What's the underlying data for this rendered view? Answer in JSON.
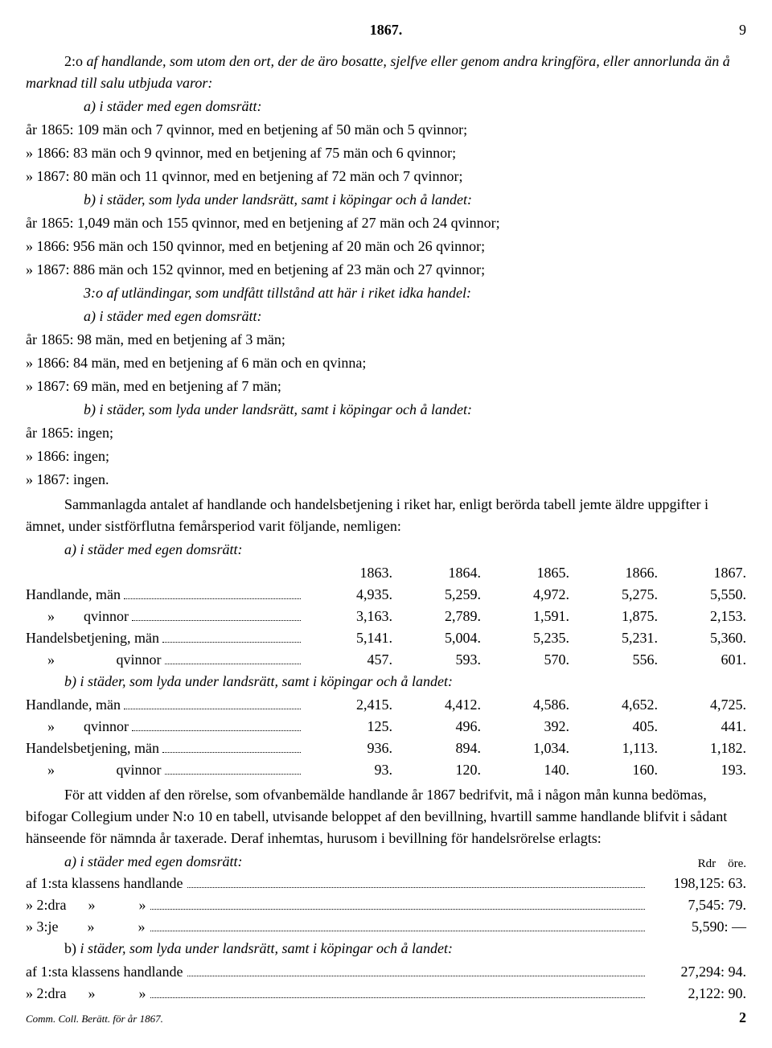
{
  "header": {
    "year": "1867.",
    "page": "9"
  },
  "lead": {
    "num": "2:o",
    "rest": "af handlande, som utom den ort, der de äro bosatte, sjelfve eller genom andra kringföra, eller annorlunda än å marknad till salu utbjuda varor:",
    "a": "a) i städer med egen domsrätt:"
  },
  "lines2a": [
    "år 1865: 109 män och 7 qvinnor, med en betjening af 50 män och 5 qvinnor;",
    "» 1866: 83 män och 9 qvinnor, med en betjening af 75 män och 6 qvinnor;",
    "» 1867: 80 män och 11 qvinnor, med en betjening af 72 män och 7 qvinnor;"
  ],
  "head2b": "b) i städer, som lyda under landsrätt, samt i köpingar och å landet:",
  "lines2b": [
    "år 1865: 1,049 män och 155 qvinnor, med en betjening af 27 män och 24 qvinnor;",
    "» 1866: 956 män och 150 qvinnor, med en betjening af 20 män och 26 qvinnor;",
    "» 1867: 886 män och 152 qvinnor, med en betjening af 23 män och 27 qvinnor;"
  ],
  "lead3": "3:o af utländingar, som undfått tillstånd att här i riket idka handel:",
  "head3a": "a) i städer med egen domsrätt:",
  "lines3a": [
    "år 1865: 98 män, med en betjening af 3 män;",
    "» 1866: 84 män, med en betjening af 6 män och en qvinna;",
    "» 1867: 69 män, med en betjening af 7 män;"
  ],
  "head3b": "b) i städer, som lyda under landsrätt, samt i köpingar och å landet:",
  "lines3b": [
    "år 1865: ingen;",
    "» 1866: ingen;",
    "» 1867: ingen."
  ],
  "sum1": "Sammanlagda antalet af handlande och handelsbetjening i riket har, enligt berörda tabell jemte äldre uppgifter i ämnet, under sistförflutna femårsperiod varit följande, nemligen:",
  "tblA_title": "a) i städer med egen domsrätt:",
  "tbl_years": [
    "1863.",
    "1864.",
    "1865.",
    "1866.",
    "1867."
  ],
  "tblA": [
    {
      "label": "Handlande, män",
      "vals": [
        "4,935.",
        "5,259.",
        "4,972.",
        "5,275.",
        "5,550."
      ]
    },
    {
      "label": "      »        qvinnor",
      "vals": [
        "3,163.",
        "2,789.",
        "1,591.",
        "1,875.",
        "2,153."
      ]
    },
    {
      "label": "Handelsbetjening, män",
      "vals": [
        "5,141.",
        "5,004.",
        "5,235.",
        "5,231.",
        "5,360."
      ]
    },
    {
      "label": "      »                 qvinnor",
      "vals": [
        "457.",
        "593.",
        "570.",
        "556.",
        "601."
      ]
    }
  ],
  "tblB_title": "b) i städer, som lyda under landsrätt, samt i köpingar och å landet:",
  "tblB": [
    {
      "label": "Handlande, män",
      "vals": [
        "2,415.",
        "4,412.",
        "4,586.",
        "4,652.",
        "4,725."
      ]
    },
    {
      "label": "      »        qvinnor",
      "vals": [
        "125.",
        "496.",
        "392.",
        "405.",
        "441."
      ]
    },
    {
      "label": "Handelsbetjening, män",
      "vals": [
        "936.",
        "894.",
        "1,034.",
        "1,113.",
        "1,182."
      ]
    },
    {
      "label": "      »                 qvinnor",
      "vals": [
        "93.",
        "120.",
        "140.",
        "160.",
        "193."
      ]
    }
  ],
  "para2": "För att vidden af den rörelse, som ofvanbemälde handlande år 1867 bedrifvit, må i någon mån kunna bedömas, bifogar Collegium under N:o 10 en tabell, utvisande beloppet af den bevillning, hvartill samme handlande blifvit i sådant hänseende för nämnda år taxerade. Deraf inhemtas, hurusom i bevillning för handelsrörelse erlagts:",
  "bevA_title": "a) i städer med egen domsrätt:",
  "rdr": "Rdr",
  "ore": "öre.",
  "bevA": [
    {
      "label": "af 1:sta klassens handlande",
      "amount": "198,125: 63."
    },
    {
      "label": "» 2:dra      »            »",
      "amount": "7,545: 79."
    },
    {
      "label": "» 3:je        »            »",
      "amount": "5,590: —"
    }
  ],
  "bevB_title": "b) i städer, som lyda under landsrätt, samt i köpingar och å landet:",
  "bevB": [
    {
      "label": "af 1:sta klassens handlande",
      "amount": "27,294: 94."
    },
    {
      "label": "» 2:dra      »            »",
      "amount": "2,122: 90."
    }
  ],
  "footnote": "Comm. Coll. Berätt. för år 1867.",
  "sig": "2"
}
